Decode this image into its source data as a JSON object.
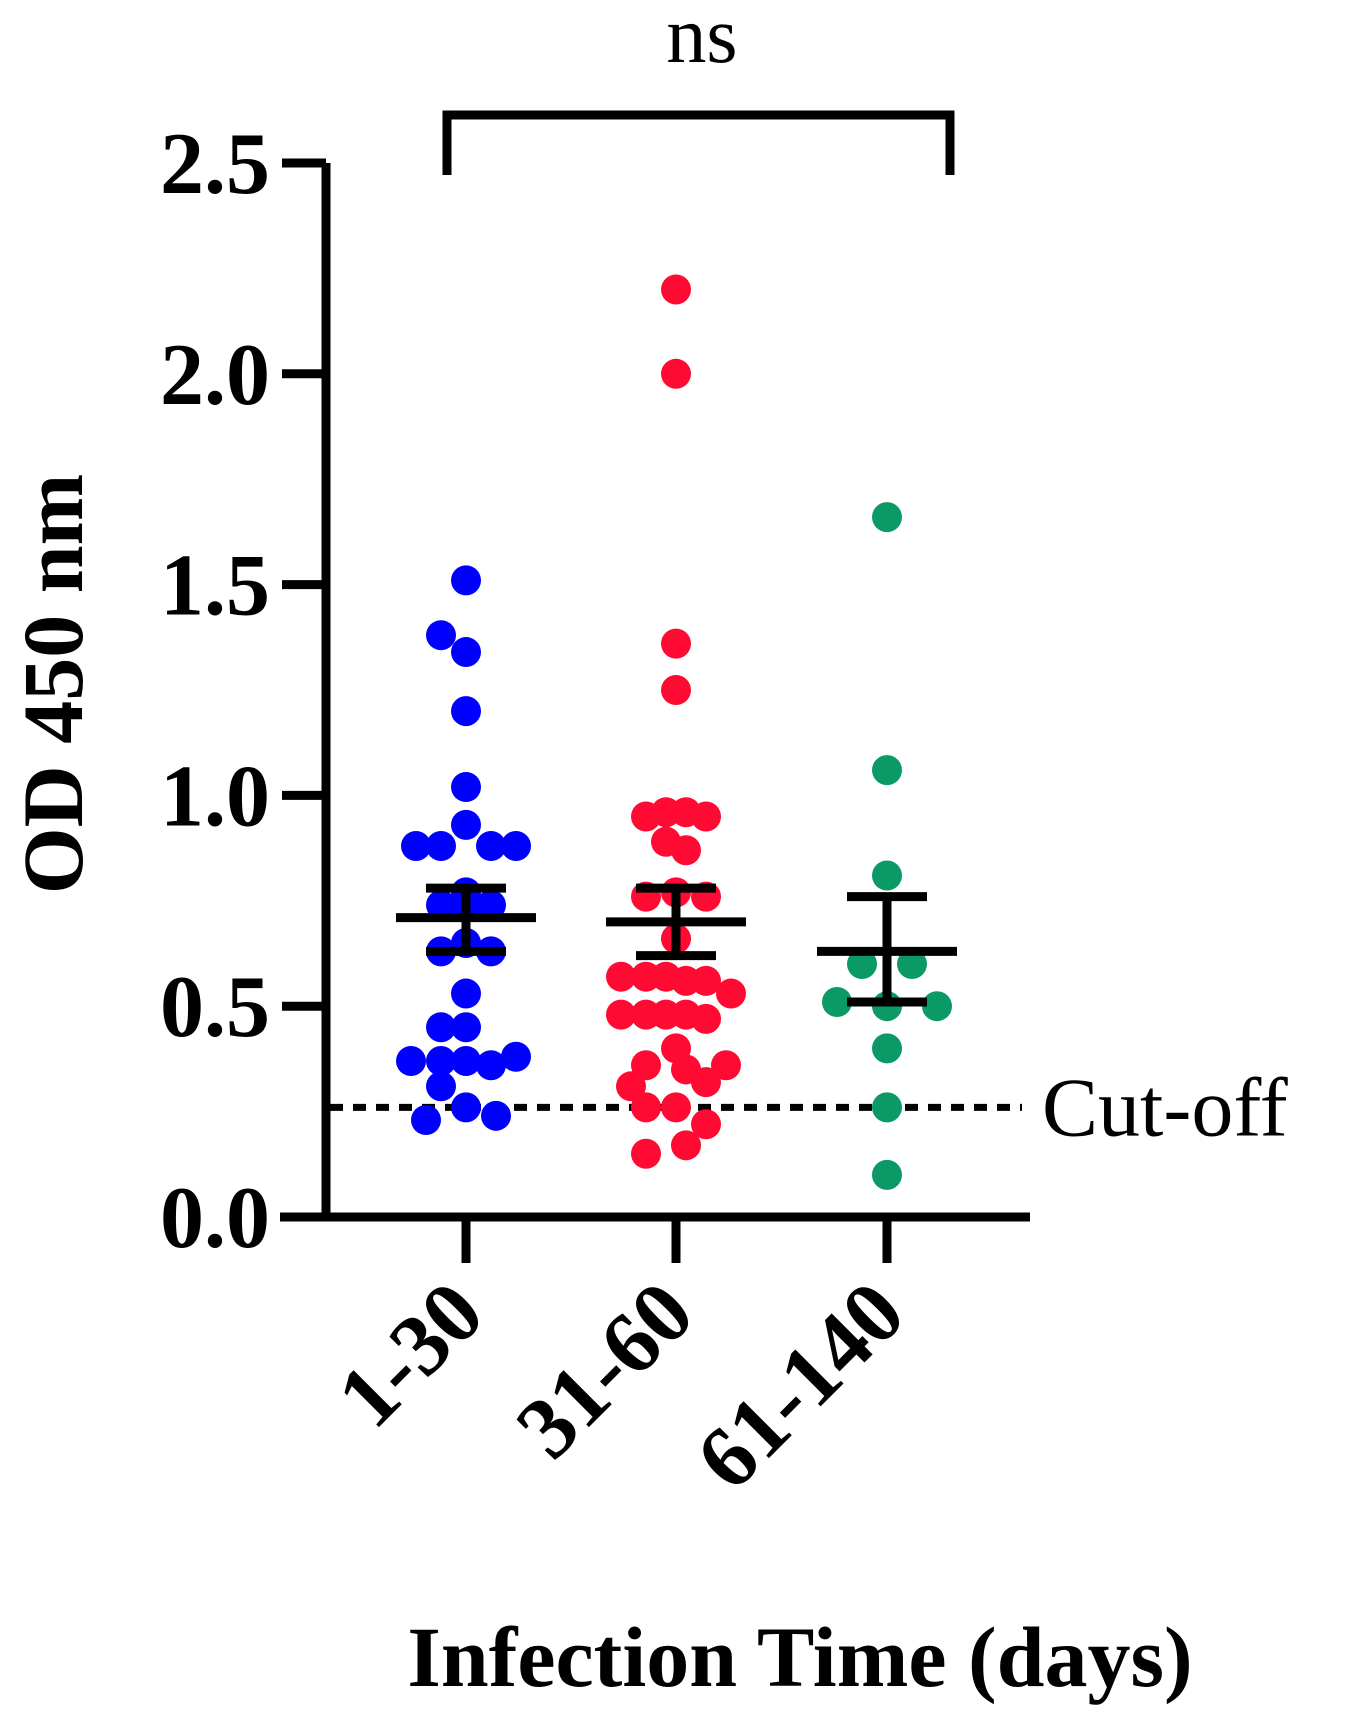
{
  "chart_data": {
    "type": "scatter",
    "xlabel": "Infection Time (days)",
    "ylabel": "OD 450 nm",
    "ylim": [
      0,
      2.5
    ],
    "yticks": [
      "0.0",
      "0.5",
      "1.0",
      "1.5",
      "2.0",
      "2.5"
    ],
    "categories": [
      "1-30",
      "31-60",
      "61-140"
    ],
    "significance": {
      "label": "ns",
      "from": "1-30",
      "to": "61-140"
    },
    "cutoff": {
      "label": "Cut-off",
      "value": 0.26
    },
    "series": [
      {
        "category": "1-30",
        "color": "#0000ff",
        "mean": 0.71,
        "sem_low": 0.63,
        "sem_high": 0.78,
        "points": [
          {
            "dx": 0,
            "y": 1.51
          },
          {
            "dx": -25,
            "y": 1.38
          },
          {
            "dx": 0,
            "y": 1.34
          },
          {
            "dx": 0,
            "y": 1.2
          },
          {
            "dx": 0,
            "y": 1.02
          },
          {
            "dx": 0,
            "y": 0.93
          },
          {
            "dx": -50,
            "y": 0.88
          },
          {
            "dx": -25,
            "y": 0.88
          },
          {
            "dx": 25,
            "y": 0.88
          },
          {
            "dx": 50,
            "y": 0.88
          },
          {
            "dx": 0,
            "y": 0.77
          },
          {
            "dx": -25,
            "y": 0.74
          },
          {
            "dx": 0,
            "y": 0.74
          },
          {
            "dx": 25,
            "y": 0.74
          },
          {
            "dx": 0,
            "y": 0.65
          },
          {
            "dx": -25,
            "y": 0.63
          },
          {
            "dx": 25,
            "y": 0.63
          },
          {
            "dx": 0,
            "y": 0.53
          },
          {
            "dx": -25,
            "y": 0.45
          },
          {
            "dx": 0,
            "y": 0.45
          },
          {
            "dx": -55,
            "y": 0.37
          },
          {
            "dx": -25,
            "y": 0.37
          },
          {
            "dx": 0,
            "y": 0.37
          },
          {
            "dx": 25,
            "y": 0.36
          },
          {
            "dx": 50,
            "y": 0.38
          },
          {
            "dx": -25,
            "y": 0.31
          },
          {
            "dx": 0,
            "y": 0.26
          },
          {
            "dx": -40,
            "y": 0.23
          },
          {
            "dx": 30,
            "y": 0.24
          }
        ]
      },
      {
        "category": "31-60",
        "color": "#ff0a32",
        "mean": 0.7,
        "sem_low": 0.62,
        "sem_high": 0.78,
        "points": [
          {
            "dx": 0,
            "y": 2.2
          },
          {
            "dx": 0,
            "y": 2.0
          },
          {
            "dx": 0,
            "y": 1.36
          },
          {
            "dx": 0,
            "y": 1.25
          },
          {
            "dx": -30,
            "y": 0.95
          },
          {
            "dx": -10,
            "y": 0.96
          },
          {
            "dx": 10,
            "y": 0.96
          },
          {
            "dx": 30,
            "y": 0.95
          },
          {
            "dx": -10,
            "y": 0.89
          },
          {
            "dx": 10,
            "y": 0.87
          },
          {
            "dx": 0,
            "y": 0.77
          },
          {
            "dx": -30,
            "y": 0.76
          },
          {
            "dx": 30,
            "y": 0.76
          },
          {
            "dx": 0,
            "y": 0.66
          },
          {
            "dx": -55,
            "y": 0.57
          },
          {
            "dx": -30,
            "y": 0.57
          },
          {
            "dx": -10,
            "y": 0.57
          },
          {
            "dx": 10,
            "y": 0.56
          },
          {
            "dx": 30,
            "y": 0.56
          },
          {
            "dx": 55,
            "y": 0.53
          },
          {
            "dx": -55,
            "y": 0.48
          },
          {
            "dx": -30,
            "y": 0.48
          },
          {
            "dx": -10,
            "y": 0.48
          },
          {
            "dx": 10,
            "y": 0.48
          },
          {
            "dx": 30,
            "y": 0.47
          },
          {
            "dx": 0,
            "y": 0.4
          },
          {
            "dx": -30,
            "y": 0.36
          },
          {
            "dx": 10,
            "y": 0.35
          },
          {
            "dx": 50,
            "y": 0.36
          },
          {
            "dx": -45,
            "y": 0.31
          },
          {
            "dx": 30,
            "y": 0.32
          },
          {
            "dx": -30,
            "y": 0.26
          },
          {
            "dx": 0,
            "y": 0.26
          },
          {
            "dx": 30,
            "y": 0.22
          },
          {
            "dx": -30,
            "y": 0.15
          },
          {
            "dx": 10,
            "y": 0.17
          }
        ]
      },
      {
        "category": "61-140",
        "color": "#0b9a66",
        "mean": 0.63,
        "sem_low": 0.51,
        "sem_high": 0.76,
        "points": [
          {
            "dx": 0,
            "y": 1.66
          },
          {
            "dx": 0,
            "y": 1.06
          },
          {
            "dx": 0,
            "y": 0.81
          },
          {
            "dx": -25,
            "y": 0.6
          },
          {
            "dx": 25,
            "y": 0.6
          },
          {
            "dx": -50,
            "y": 0.51
          },
          {
            "dx": 0,
            "y": 0.5
          },
          {
            "dx": 50,
            "y": 0.5
          },
          {
            "dx": 0,
            "y": 0.4
          },
          {
            "dx": 0,
            "y": 0.26
          },
          {
            "dx": 0,
            "y": 0.1
          }
        ]
      }
    ]
  }
}
